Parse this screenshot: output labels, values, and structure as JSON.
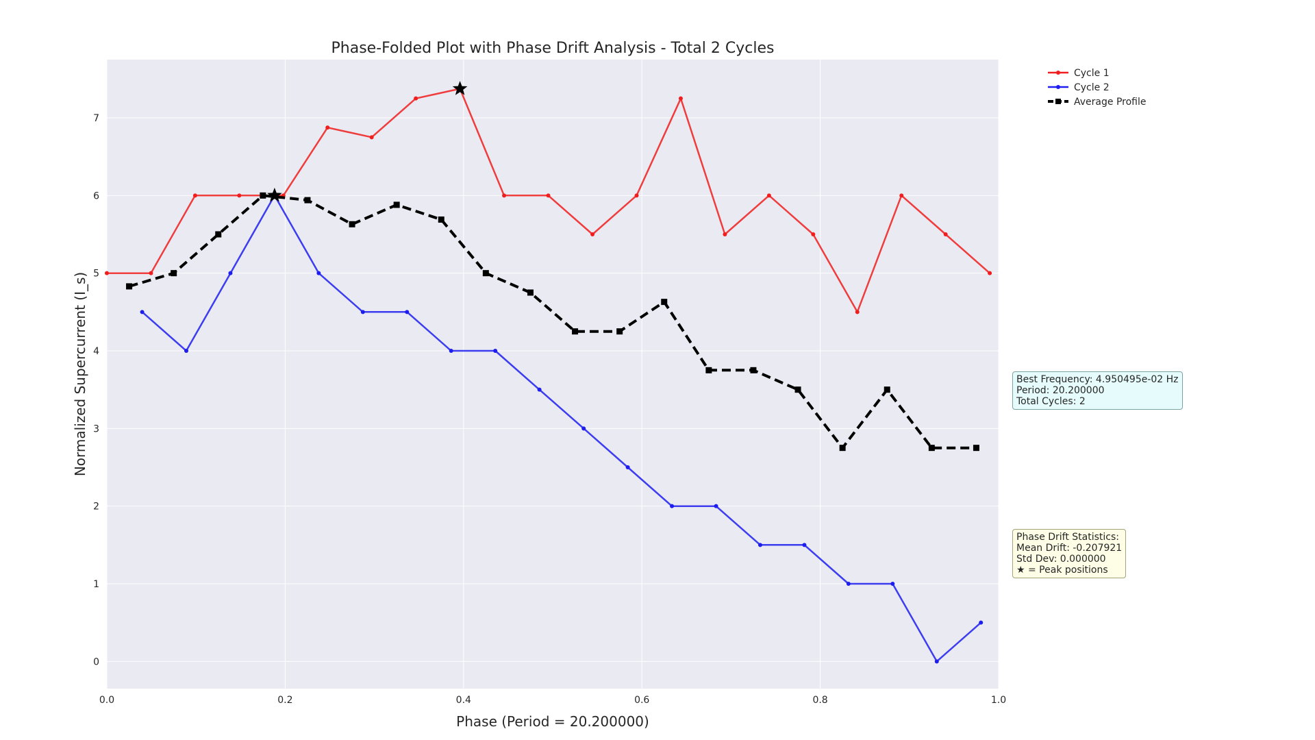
{
  "chart_data": {
    "type": "line",
    "title": "Phase-Folded Plot with Phase Drift Analysis - Total 2 Cycles",
    "xlabel": "Phase (Period = 20.200000)",
    "ylabel": "Normalized Supercurrent (I_s)",
    "xlim": [
      0.0,
      1.0
    ],
    "ylim": [
      -0.35,
      7.75
    ],
    "x_ticks": [
      "0.0",
      "0.2",
      "0.4",
      "0.6",
      "0.8",
      "1.0"
    ],
    "y_ticks": [
      "0",
      "1",
      "2",
      "3",
      "4",
      "5",
      "6",
      "7"
    ],
    "grid": true,
    "legend_position": "outside-top-right",
    "series": [
      {
        "name": "Cycle 1",
        "color": "#f01e1e",
        "style": "solid",
        "marker": "dot",
        "x": [
          0.0,
          0.0495,
          0.099,
          0.1485,
          0.198,
          0.2475,
          0.297,
          0.3465,
          0.396,
          0.4455,
          0.495,
          0.5446,
          0.5941,
          0.6436,
          0.6931,
          0.7426,
          0.7921,
          0.8416,
          0.8911,
          0.9406,
          0.9901
        ],
        "y": [
          5.0,
          5.0,
          6.0,
          6.0,
          6.0,
          6.875,
          6.75,
          7.25,
          7.375,
          6.0,
          6.0,
          5.5,
          6.0,
          7.25,
          5.5,
          6.0,
          5.5,
          4.5,
          6.0,
          5.5,
          5.0
        ]
      },
      {
        "name": "Cycle 2",
        "color": "#1e1ef0",
        "style": "solid",
        "marker": "dot",
        "x": [
          0.0396,
          0.0891,
          0.1386,
          0.1881,
          0.2376,
          0.2871,
          0.3366,
          0.3861,
          0.4356,
          0.4851,
          0.5347,
          0.5842,
          0.6337,
          0.6832,
          0.7327,
          0.7822,
          0.8317,
          0.8812,
          0.9307,
          0.9802
        ],
        "y": [
          4.5,
          4.0,
          5.0,
          6.0,
          5.0,
          4.5,
          4.5,
          4.0,
          4.0,
          3.5,
          3.0,
          2.5,
          2.0,
          2.0,
          1.5,
          1.5,
          1.0,
          1.0,
          0.0,
          0.5
        ]
      },
      {
        "name": "Average Profile",
        "color": "#000000",
        "style": "dashed",
        "marker": "square",
        "x": [
          0.025,
          0.075,
          0.125,
          0.175,
          0.225,
          0.275,
          0.325,
          0.375,
          0.425,
          0.475,
          0.525,
          0.575,
          0.625,
          0.675,
          0.725,
          0.775,
          0.825,
          0.875,
          0.925,
          0.975
        ],
        "y": [
          4.83,
          5.0,
          5.5,
          6.0,
          5.94,
          5.63,
          5.88,
          5.69,
          5.0,
          4.75,
          4.25,
          4.25,
          4.63,
          3.75,
          3.75,
          3.5,
          2.75,
          3.5,
          2.75,
          2.75
        ]
      }
    ],
    "peaks": [
      {
        "series": "Cycle 1",
        "x": 0.396,
        "y": 7.375
      },
      {
        "series": "Cycle 2",
        "x": 0.1881,
        "y": 6.0
      }
    ],
    "annotations": {
      "frequency_box": [
        "Best Frequency: 4.950495e-02 Hz",
        "Period: 20.200000",
        "Total Cycles: 2"
      ],
      "drift_box": [
        "Phase Drift Statistics:",
        "Mean Drift: -0.207921",
        "Std Dev: 0.000000",
        "★ = Peak positions"
      ]
    },
    "colors": {
      "plot_background": "#eaeaf2",
      "grid": "#ffffff",
      "frequency_box": "#e6fbfb",
      "drift_box": "#fefee6"
    }
  }
}
